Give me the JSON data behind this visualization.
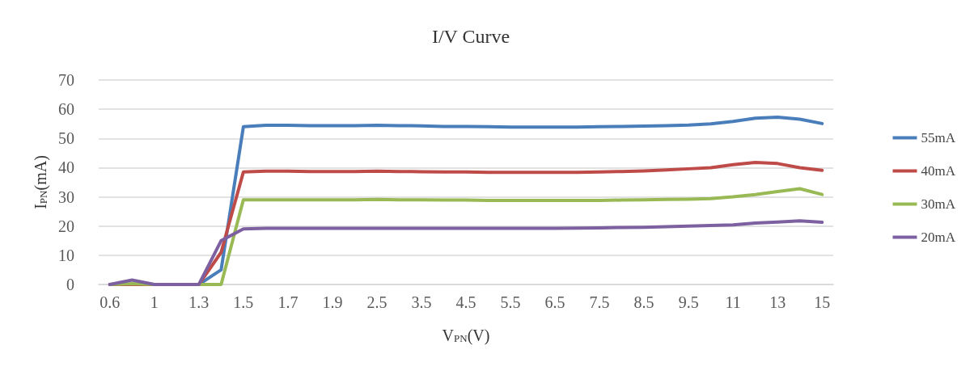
{
  "chart_data": {
    "type": "line",
    "title": "I/V Curve",
    "xlabel": "V$_{PN}$(V)",
    "ylabel": "I$_{PN}$(mA)",
    "categories": [
      "0.6",
      null,
      "1",
      null,
      "1.3",
      null,
      "1.5",
      null,
      "1.7",
      null,
      "1.9",
      null,
      "2.5",
      null,
      "3.5",
      null,
      "4.5",
      null,
      "5.5",
      null,
      "6.5",
      null,
      "7.5",
      null,
      "8.5",
      null,
      "9.5",
      null,
      "11",
      null,
      "13",
      null,
      "15"
    ],
    "series": [
      {
        "name": "55mA",
        "color": "#4a7ebb",
        "values": [
          0,
          0,
          0,
          0,
          0,
          5,
          54,
          54.5,
          54.5,
          54.4,
          54.4,
          54.4,
          54.5,
          54.4,
          54.3,
          54.1,
          54.1,
          54,
          53.9,
          53.9,
          53.9,
          53.9,
          54,
          54.1,
          54.2,
          54.4,
          54.6,
          55,
          55.8,
          56.9,
          57.3,
          56.6,
          55.1
        ]
      },
      {
        "name": "40mA",
        "color": "#be4b48",
        "values": [
          0,
          0,
          0,
          0,
          0,
          11,
          38.5,
          38.8,
          38.8,
          38.7,
          38.7,
          38.7,
          38.8,
          38.7,
          38.6,
          38.5,
          38.5,
          38.4,
          38.4,
          38.4,
          38.4,
          38.4,
          38.5,
          38.7,
          38.9,
          39.2,
          39.6,
          40,
          41,
          41.8,
          41.4,
          40,
          39.1
        ]
      },
      {
        "name": "30mA",
        "color": "#98b954",
        "values": [
          0,
          0.3,
          0,
          0,
          0,
          0,
          29,
          29,
          29,
          29,
          29,
          29,
          29.1,
          29,
          29,
          28.9,
          28.9,
          28.8,
          28.8,
          28.8,
          28.8,
          28.8,
          28.8,
          28.9,
          29,
          29.1,
          29.2,
          29.4,
          30,
          30.8,
          31.8,
          32.8,
          30.8
        ]
      },
      {
        "name": "20mA",
        "color": "#7d60a0",
        "values": [
          0,
          1.5,
          0,
          0,
          0,
          15,
          19,
          19.2,
          19.2,
          19.2,
          19.2,
          19.2,
          19.2,
          19.2,
          19.2,
          19.2,
          19.2,
          19.2,
          19.2,
          19.2,
          19.2,
          19.3,
          19.4,
          19.5,
          19.6,
          19.8,
          20,
          20.2,
          20.4,
          21,
          21.4,
          21.8,
          21.3
        ]
      }
    ],
    "ylim": [
      0,
      70
    ],
    "yticks": [
      0,
      10,
      20,
      30,
      40,
      50,
      60,
      70
    ],
    "grid": "y",
    "legend": "right",
    "marker": "none",
    "line_style": "solid"
  }
}
